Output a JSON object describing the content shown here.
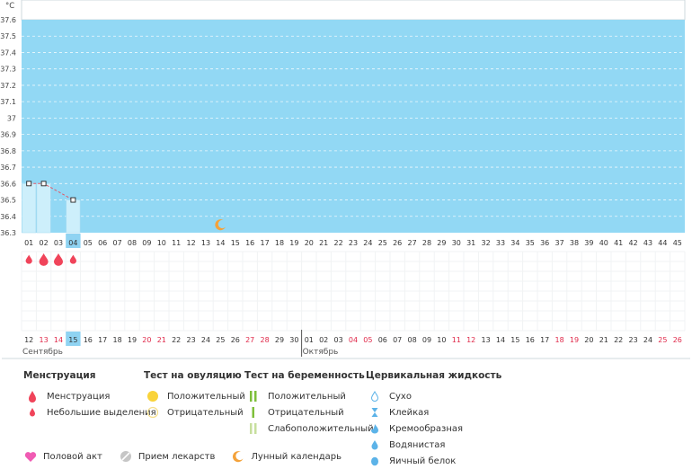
{
  "chart_data": {
    "type": "bar",
    "unit_label": "°C",
    "ylim": [
      36.3,
      37.6
    ],
    "y_ticks": [
      "37.6",
      "37.5",
      "37.4",
      "37.3",
      "37.2",
      "37.1",
      "37",
      "36.9",
      "36.8",
      "36.7",
      "36.6",
      "36.5",
      "36.4",
      "36.3"
    ],
    "cycle_days": [
      "01",
      "02",
      "03",
      "04",
      "05",
      "06",
      "07",
      "08",
      "09",
      "10",
      "11",
      "12",
      "13",
      "14",
      "15",
      "16",
      "17",
      "18",
      "19",
      "20",
      "21",
      "22",
      "23",
      "24",
      "25",
      "26",
      "27",
      "28",
      "29",
      "30",
      "31",
      "32",
      "33",
      "34",
      "35",
      "36",
      "37",
      "38",
      "39",
      "40",
      "41",
      "42",
      "43",
      "44",
      "45"
    ],
    "current_cycle_day_index": 3,
    "temperatures": [
      {
        "day": "01",
        "value": 36.6
      },
      {
        "day": "02",
        "value": 36.6
      },
      {
        "day": "04",
        "value": 36.5
      }
    ],
    "menstruation": [
      {
        "day": "01",
        "intensity": "light"
      },
      {
        "day": "02",
        "intensity": "heavy"
      },
      {
        "day": "03",
        "intensity": "heavy"
      },
      {
        "day": "04",
        "intensity": "light"
      }
    ],
    "moon_marker_day": "14",
    "dates": [
      {
        "d": "12",
        "weekend": false
      },
      {
        "d": "13",
        "weekend": true
      },
      {
        "d": "14",
        "weekend": true
      },
      {
        "d": "15",
        "weekend": false,
        "today": true
      },
      {
        "d": "16",
        "weekend": false
      },
      {
        "d": "17",
        "weekend": false
      },
      {
        "d": "18",
        "weekend": false
      },
      {
        "d": "19",
        "weekend": false
      },
      {
        "d": "20",
        "weekend": true
      },
      {
        "d": "21",
        "weekend": true
      },
      {
        "d": "22",
        "weekend": false
      },
      {
        "d": "23",
        "weekend": false
      },
      {
        "d": "24",
        "weekend": false
      },
      {
        "d": "25",
        "weekend": false
      },
      {
        "d": "26",
        "weekend": false
      },
      {
        "d": "27",
        "weekend": true
      },
      {
        "d": "28",
        "weekend": true
      },
      {
        "d": "29",
        "weekend": false
      },
      {
        "d": "30",
        "weekend": false
      },
      {
        "d": "01",
        "weekend": false
      },
      {
        "d": "02",
        "weekend": false
      },
      {
        "d": "03",
        "weekend": false
      },
      {
        "d": "04",
        "weekend": true
      },
      {
        "d": "05",
        "weekend": true
      },
      {
        "d": "06",
        "weekend": false
      },
      {
        "d": "07",
        "weekend": false
      },
      {
        "d": "08",
        "weekend": false
      },
      {
        "d": "09",
        "weekend": false
      },
      {
        "d": "10",
        "weekend": false
      },
      {
        "d": "11",
        "weekend": true
      },
      {
        "d": "12",
        "weekend": true
      },
      {
        "d": "13",
        "weekend": false
      },
      {
        "d": "14",
        "weekend": false
      },
      {
        "d": "15",
        "weekend": false
      },
      {
        "d": "16",
        "weekend": false
      },
      {
        "d": "17",
        "weekend": false
      },
      {
        "d": "18",
        "weekend": true
      },
      {
        "d": "19",
        "weekend": true
      },
      {
        "d": "20",
        "weekend": false
      },
      {
        "d": "21",
        "weekend": false
      },
      {
        "d": "22",
        "weekend": false
      },
      {
        "d": "23",
        "weekend": false
      },
      {
        "d": "24",
        "weekend": false
      },
      {
        "d": "25",
        "weekend": true
      },
      {
        "d": "26",
        "weekend": true
      }
    ],
    "months": [
      {
        "label": "Сентябрь",
        "start_index": 0
      },
      {
        "label": "Октябрь",
        "start_index": 19
      }
    ]
  },
  "colors": {
    "plot_bg": "#92d8f4",
    "bar": "#cdeffb",
    "bar_edge": "#a9ddf2",
    "red": "#f0445a",
    "moon": "#f4a23a",
    "weekend": "#e0294a",
    "today_bg": "#8fd3f2",
    "green": "#7ebf3a",
    "light_green": "#c7df9e",
    "yellow": "#f9d33a",
    "heart": "#f05bb3",
    "pill": "#c6c6c6",
    "drop_blue": "#5cb3e8"
  },
  "legend": {
    "menstruation": {
      "title": "Менструация",
      "items": [
        "Менструация",
        "Небольшие выделения"
      ]
    },
    "ovulation": {
      "title": "Тест на овуляцию",
      "items": [
        "Положительный",
        "Отрицательный"
      ]
    },
    "pregnancy": {
      "title": "Тест на беременность",
      "items": [
        "Положительный",
        "Отрицательный",
        "Слабоположительный"
      ]
    },
    "cervical": {
      "title": "Цервикальная жидкость",
      "items": [
        "Сухо",
        "Клейкая",
        "Кремообразная",
        "Водянистая",
        "Яичный белок"
      ]
    }
  },
  "bottom": {
    "intercourse": "Половой акт",
    "medication": "Прием лекарств",
    "lunar": "Лунный календарь"
  }
}
